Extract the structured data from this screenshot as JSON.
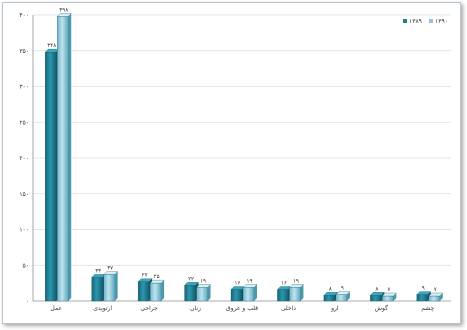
{
  "chart_data": {
    "type": "bar",
    "title": "",
    "xlabel": "",
    "ylabel": "",
    "ylim": [
      0,
      400
    ],
    "y_ticks": [
      "۰",
      "۵۰",
      "۱۰۰",
      "۱۵۰",
      "۲۰۰",
      "۲۵۰",
      "۳۰۰",
      "۳۵۰",
      "۴۰۰"
    ],
    "y_tick_values": [
      0,
      50,
      100,
      150,
      200,
      250,
      300,
      350,
      400
    ],
    "grid": true,
    "legend_position": "top-right",
    "categories": [
      "عمل",
      "ارتوپدی",
      "جراحی",
      "زنان",
      "قلب و عروق",
      "داخلی",
      "ارو",
      "گوش",
      "چشم"
    ],
    "series": [
      {
        "name": "۱۳۸۹",
        "color": "#1f7f95",
        "values": [
          348,
          33,
          27,
          22,
          16,
          16,
          8,
          8,
          9
        ],
        "labels": [
          "۳۴۸",
          "۳۳",
          "۲۷",
          "۲۲",
          "۱۶",
          "۱۶",
          "۸",
          "۸",
          "۹"
        ]
      },
      {
        "name": "۱۳۹۰",
        "color": "#8cc6d8",
        "values": [
          398,
          37,
          25,
          19,
          19,
          19,
          9,
          7,
          7
        ],
        "labels": [
          "۳۹۸",
          "۳۷",
          "۲۵",
          "۱۹",
          "۱۹",
          "۱۹",
          "۹",
          "۷",
          "۷"
        ]
      }
    ]
  }
}
